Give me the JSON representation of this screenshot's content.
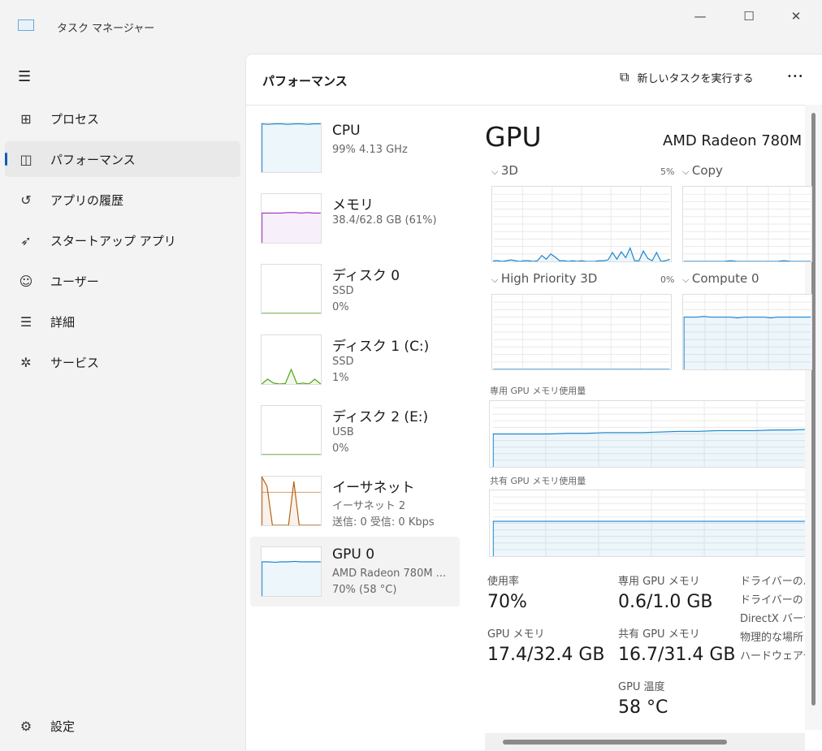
{
  "window": {
    "title": "タスク マネージャー",
    "minimize": "—",
    "maximize": "☐",
    "close": "✕"
  },
  "sidebar": {
    "items": [
      {
        "label": "プロセス",
        "icon": "processes-icon",
        "glyph": "⊞"
      },
      {
        "label": "パフォーマンス",
        "icon": "performance-icon",
        "glyph": "◫",
        "selected": true
      },
      {
        "label": "アプリの履歴",
        "icon": "history-icon",
        "glyph": "↺"
      },
      {
        "label": "スタートアップ アプリ",
        "icon": "startup-icon",
        "glyph": "➶"
      },
      {
        "label": "ユーザー",
        "icon": "users-icon",
        "glyph": "☺"
      },
      {
        "label": "詳細",
        "icon": "details-icon",
        "glyph": "☰"
      },
      {
        "label": "サービス",
        "icon": "services-icon",
        "glyph": "✲"
      }
    ],
    "settings": "設定",
    "menu_glyph": "☰"
  },
  "header": {
    "title": "パフォーマンス",
    "run_task": "新しいタスクを実行する",
    "more": "•••"
  },
  "devices": [
    {
      "name": "CPU",
      "sub1": "99% 4.13 GHz",
      "sub2": "",
      "color": "#1a86d0",
      "values": [
        99,
        98,
        99,
        99,
        98,
        99,
        99,
        98,
        99,
        99
      ]
    },
    {
      "name": "メモリ",
      "sub1": "38.4/62.8 GB (61%)",
      "sub2": "",
      "color": "#9b2fbd",
      "values": [
        61,
        61,
        61,
        61,
        62,
        62,
        61,
        62,
        61,
        61
      ]
    },
    {
      "name": "ディスク 0",
      "sub1": "SSD",
      "sub2": "0%",
      "color": "#4ca30d",
      "values": [
        0,
        0,
        0,
        0,
        0,
        0,
        0,
        0,
        0,
        0
      ]
    },
    {
      "name": "ディスク 1 (C:)",
      "sub1": "SSD",
      "sub2": "1%",
      "color": "#4ca30d",
      "values": [
        0,
        10,
        2,
        0,
        1,
        30,
        0,
        2,
        0,
        10,
        0
      ]
    },
    {
      "name": "ディスク 2 (E:)",
      "sub1": "USB",
      "sub2": "0%",
      "color": "#4ca30d",
      "values": [
        0,
        0,
        0,
        0,
        0,
        0,
        0,
        0,
        0,
        0
      ]
    },
    {
      "name": "イーサネット",
      "sub1": "イーサネット 2",
      "sub2": "送信: 0 受信: 0 Kbps",
      "color": "#b85d0b",
      "values": [
        100,
        80,
        0,
        0,
        0,
        0,
        90,
        0,
        0,
        0,
        0,
        0
      ]
    },
    {
      "name": "GPU 0",
      "sub1": "AMD Radeon 780M ...",
      "sub2": "70% (58 °C)",
      "color": "#1a86d0",
      "selected": true,
      "values": [
        70,
        70,
        69,
        70,
        70,
        71,
        70,
        70,
        70,
        70
      ]
    }
  ],
  "gpu": {
    "title": "GPU",
    "model": "AMD Radeon 780M",
    "engines": [
      {
        "name": "3D",
        "pct": "5%",
        "values": [
          1,
          1,
          0,
          1,
          2,
          1,
          0,
          1,
          1,
          0,
          1,
          8,
          3,
          10,
          6,
          1,
          1,
          0,
          1,
          0,
          1,
          0,
          0,
          0,
          1,
          1,
          2,
          12,
          3,
          13,
          5,
          18,
          1,
          1,
          14,
          4,
          1,
          12,
          0,
          1,
          3
        ]
      },
      {
        "name": "Copy",
        "pct": "",
        "values": [
          0,
          0,
          0,
          0,
          0,
          0,
          0,
          1,
          0,
          0,
          0,
          0,
          0,
          0,
          0,
          1,
          0,
          0,
          0,
          0
        ]
      },
      {
        "name": "High Priority 3D",
        "pct": "0%",
        "values": [
          0,
          0,
          0,
          0,
          0,
          0,
          0,
          0,
          0,
          0
        ]
      },
      {
        "name": "Compute 0",
        "pct": "",
        "values": [
          70,
          70,
          70,
          71,
          70,
          70,
          70,
          70,
          69,
          70,
          70,
          70,
          70,
          69,
          70,
          70,
          70,
          70,
          70,
          70
        ]
      }
    ],
    "dedicated_label": "専用 GPU メモリ使用量",
    "dedicated_values": [
      50,
      50,
      50,
      50,
      51,
      51,
      52,
      52,
      52,
      53,
      54,
      54,
      55,
      55,
      55,
      56,
      56,
      57
    ],
    "shared_label": "共有 GPU メモリ使用量",
    "shared_values": [
      53,
      53,
      53,
      53,
      53,
      53,
      53,
      53,
      53,
      53
    ],
    "stats": {
      "usage_label": "使用率",
      "usage": "70%",
      "gpumem_label": "GPU メモリ",
      "gpumem": "17.4/32.4 GB",
      "ded_label": "専用 GPU メモリ",
      "ded": "0.6/1.0 GB",
      "shared_label": "共有 GPU メモリ",
      "shared": "16.7/31.4 GB",
      "temp_label": "GPU 温度",
      "temp": "58 °C"
    },
    "info_labels": [
      "ドライバーのバ",
      "ドライバーの日",
      "DirectX バージ",
      "物理的な場所",
      "ハードウェア予"
    ]
  },
  "colors": {
    "accent": "#005fb8",
    "gpu_line": "#1a86d0"
  }
}
